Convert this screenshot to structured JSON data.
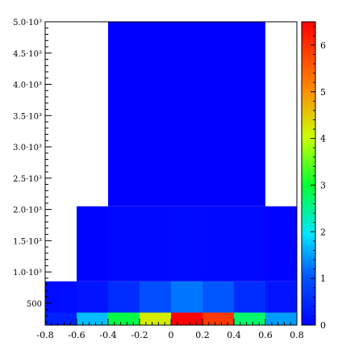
{
  "chart_data": {
    "type": "heatmap",
    "title": "",
    "xlabel": "",
    "ylabel": "",
    "xlim": [
      -0.8,
      0.8
    ],
    "ylim": [
      150,
      5000
    ],
    "x_ticks": [
      -0.8,
      -0.6,
      -0.4,
      -0.2,
      0,
      0.2,
      0.4,
      0.6,
      0.8
    ],
    "x_tick_labels": [
      "-0.8",
      "-0.6",
      "-0.4",
      "-0.2",
      "0",
      "0.2",
      "0.4",
      "0.6",
      "0.8"
    ],
    "y_ticks": [
      500,
      1000,
      1500,
      2000,
      2500,
      3000,
      3500,
      4000,
      4500,
      5000
    ],
    "y_tick_labels": [
      "500",
      "1.0·10³",
      "1.5·10³",
      "2.0·10³",
      "2.5·10³",
      "3.0·10³",
      "3.5·10³",
      "4.0·10³",
      "4.5·10³",
      "5.0·10³"
    ],
    "colorbar": {
      "min": 0,
      "max": 6.5,
      "ticks": [
        0,
        1,
        2,
        3,
        4,
        5,
        6
      ],
      "tick_labels": [
        "0",
        "1",
        "2",
        "3",
        "4",
        "5",
        "6"
      ],
      "colormap": "rainbow"
    },
    "y_bins": [
      [
        150,
        350
      ],
      [
        350,
        850
      ],
      [
        850,
        2050
      ],
      [
        2050,
        5000
      ]
    ],
    "x_bins": [
      [
        -0.8,
        -0.6
      ],
      [
        -0.6,
        -0.4
      ],
      [
        -0.4,
        -0.2
      ],
      [
        -0.2,
        0.0
      ],
      [
        0.0,
        0.2
      ],
      [
        0.2,
        0.4
      ],
      [
        0.4,
        0.6
      ],
      [
        0.6,
        0.8
      ]
    ],
    "cells": [
      {
        "x": [
          -0.8,
          -0.6
        ],
        "y": [
          150,
          350
        ],
        "value": 0.4
      },
      {
        "x": [
          -0.6,
          -0.4
        ],
        "y": [
          150,
          350
        ],
        "value": 1.7
      },
      {
        "x": [
          -0.4,
          -0.2
        ],
        "y": [
          150,
          350
        ],
        "value": 2.9
      },
      {
        "x": [
          -0.2,
          0.0
        ],
        "y": [
          150,
          350
        ],
        "value": 4.2
      },
      {
        "x": [
          0.0,
          0.2
        ],
        "y": [
          150,
          350
        ],
        "value": 6.5
      },
      {
        "x": [
          0.2,
          0.4
        ],
        "y": [
          150,
          350
        ],
        "value": 5.9
      },
      {
        "x": [
          0.4,
          0.6
        ],
        "y": [
          150,
          350
        ],
        "value": 2.7
      },
      {
        "x": [
          0.6,
          0.8
        ],
        "y": [
          150,
          350
        ],
        "value": 1.5
      },
      {
        "x": [
          -0.8,
          -0.6
        ],
        "y": [
          350,
          850
        ],
        "value": 0.15
      },
      {
        "x": [
          -0.6,
          -0.4
        ],
        "y": [
          350,
          850
        ],
        "value": 0.25
      },
      {
        "x": [
          -0.4,
          -0.2
        ],
        "y": [
          350,
          850
        ],
        "value": 0.55
      },
      {
        "x": [
          -0.2,
          0.0
        ],
        "y": [
          350,
          850
        ],
        "value": 0.95
      },
      {
        "x": [
          0.0,
          0.2
        ],
        "y": [
          350,
          850
        ],
        "value": 1.25
      },
      {
        "x": [
          0.2,
          0.4
        ],
        "y": [
          350,
          850
        ],
        "value": 1.05
      },
      {
        "x": [
          0.4,
          0.6
        ],
        "y": [
          350,
          850
        ],
        "value": 0.55
      },
      {
        "x": [
          0.6,
          0.8
        ],
        "y": [
          350,
          850
        ],
        "value": 0.25
      },
      {
        "x": [
          -0.6,
          -0.4
        ],
        "y": [
          850,
          2050
        ],
        "value": 0.05
      },
      {
        "x": [
          -0.4,
          -0.2
        ],
        "y": [
          850,
          2050
        ],
        "value": 0.08
      },
      {
        "x": [
          -0.2,
          0.0
        ],
        "y": [
          850,
          2050
        ],
        "value": 0.1
      },
      {
        "x": [
          0.0,
          0.2
        ],
        "y": [
          850,
          2050
        ],
        "value": 0.12
      },
      {
        "x": [
          0.2,
          0.4
        ],
        "y": [
          850,
          2050
        ],
        "value": 0.1
      },
      {
        "x": [
          0.4,
          0.6
        ],
        "y": [
          850,
          2050
        ],
        "value": 0.08
      },
      {
        "x": [
          0.6,
          0.8
        ],
        "y": [
          850,
          2050
        ],
        "value": 0.04
      },
      {
        "x": [
          -0.4,
          -0.2
        ],
        "y": [
          2050,
          5000
        ],
        "value": 0.0
      },
      {
        "x": [
          -0.2,
          0.0
        ],
        "y": [
          2050,
          5000
        ],
        "value": 0.0
      },
      {
        "x": [
          0.0,
          0.2
        ],
        "y": [
          2050,
          5000
        ],
        "value": 0.0
      },
      {
        "x": [
          0.2,
          0.4
        ],
        "y": [
          2050,
          5000
        ],
        "value": 0.0
      },
      {
        "x": [
          0.4,
          0.6
        ],
        "y": [
          2050,
          5000
        ],
        "value": 0.0
      }
    ]
  }
}
